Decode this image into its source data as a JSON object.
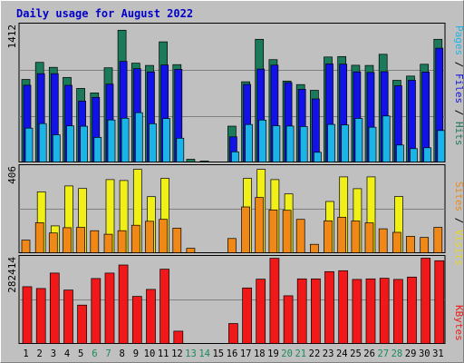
{
  "chart_data": {
    "type": "bar",
    "title": "Daily usage for August 2022",
    "categories": [
      "1",
      "2",
      "3",
      "4",
      "5",
      "6",
      "7",
      "8",
      "9",
      "10",
      "11",
      "12",
      "13",
      "14",
      "15",
      "16",
      "17",
      "18",
      "19",
      "20",
      "21",
      "22",
      "23",
      "24",
      "25",
      "26",
      "27",
      "28",
      "29",
      "30",
      "31"
    ],
    "weekend_days": [
      "6",
      "7",
      "13",
      "14",
      "20",
      "21",
      "27",
      "28"
    ],
    "panels": [
      {
        "id": "top",
        "max_label": "1412",
        "ymax": 1412,
        "series": [
          {
            "name": "Hits",
            "color": "#1a7a5a",
            "values": [
              857,
              1034,
              982,
              877,
              763,
              716,
              977,
              1367,
              1025,
              1002,
              1246,
              1010,
              28,
              10,
              0,
              372,
              832,
              1273,
              1062,
              840,
              803,
              744,
              1089,
              1094,
              1003,
              1002,
              1117,
              847,
              891,
              1014,
              1273
            ]
          },
          {
            "name": "Files",
            "color": "#1212e8",
            "values": [
              796,
              916,
              916,
              795,
              632,
              670,
              808,
              1043,
              968,
              935,
              1006,
              961,
              0,
              0,
              0,
              261,
              805,
              964,
              1004,
              824,
              754,
              654,
              1018,
              1015,
              935,
              929,
              937,
              791,
              847,
              933,
              1180
            ]
          },
          {
            "name": "Pages",
            "color": "#1ab4e8",
            "values": [
              351,
              398,
              282,
              375,
              371,
              255,
              436,
              454,
              512,
              397,
              451,
              247,
              0,
              0,
              0,
              105,
              389,
              435,
              376,
              373,
              368,
              101,
              390,
              384,
              452,
              361,
              477,
              176,
              138,
              148,
              327
            ]
          }
        ]
      },
      {
        "id": "middle",
        "max_label": "406",
        "ymax": 406,
        "series": [
          {
            "name": "Visits",
            "color": "#f0f018",
            "values": [
              0,
              290,
              128,
              318,
              306,
              0,
              348,
              344,
              397,
              267,
              354,
              0,
              0,
              0,
              0,
              0,
              354,
              397,
              348,
              280,
              0,
              0,
              244,
              361,
              305,
              361,
              0,
              268,
              0,
              0,
              0
            ]
          },
          {
            "name": "Sites",
            "color": "#f08818",
            "values": [
              60,
              143,
              94,
              119,
              121,
              105,
              88,
              105,
              131,
              150,
              159,
              117,
              21,
              0,
              0,
              68,
              218,
              263,
              204,
              202,
              159,
              40,
              152,
              169,
              151,
              142,
              114,
              97,
              78,
              73,
              121
            ]
          }
        ]
      },
      {
        "id": "bottom",
        "max_label": "282414",
        "ymax": 282414,
        "series": [
          {
            "name": "KBytes",
            "color": "#f01818",
            "values": [
              188000,
              182000,
              233000,
              177000,
              127000,
              215000,
              233000,
              260000,
              156000,
              179000,
              246000,
              41000,
              0,
              0,
              0,
              66000,
              184000,
              213000,
              282000,
              158000,
              214000,
              214000,
              238000,
              241000,
              212000,
              214000,
              216000,
              212000,
              220000,
              282414,
              274000
            ]
          }
        ]
      }
    ]
  }
}
